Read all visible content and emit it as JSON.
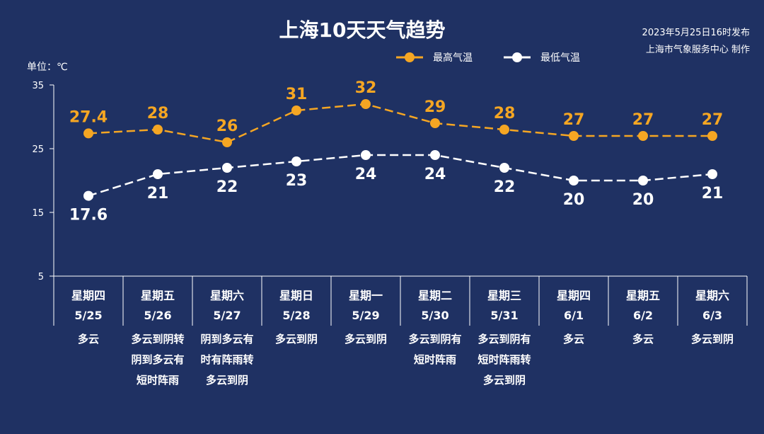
{
  "header": {
    "title": "上海10天天气趋势",
    "publish_time": "2023年5月25日16时发布",
    "publisher": "上海市气象服务中心 制作"
  },
  "colors": {
    "background": "#1f3163",
    "high": "#f5a623",
    "low": "#ffffff",
    "axis": "#ffffff"
  },
  "chart_data": {
    "type": "line",
    "unit_label": "单位：℃",
    "ylim": [
      5,
      35
    ],
    "yticks": [
      5,
      15,
      25,
      35
    ],
    "grid": false,
    "legend_position": "top-center",
    "days": [
      {
        "weekday": "星期四",
        "date": "5/25",
        "weather": [
          "多云"
        ]
      },
      {
        "weekday": "星期五",
        "date": "5/26",
        "weather": [
          "多云到阴转",
          "阴到多云有",
          "短时阵雨"
        ]
      },
      {
        "weekday": "星期六",
        "date": "5/27",
        "weather": [
          "阴到多云有",
          "时有阵雨转",
          "多云到阴"
        ]
      },
      {
        "weekday": "星期日",
        "date": "5/28",
        "weather": [
          "多云到阴"
        ]
      },
      {
        "weekday": "星期一",
        "date": "5/29",
        "weather": [
          "多云到阴"
        ]
      },
      {
        "weekday": "星期二",
        "date": "5/30",
        "weather": [
          "多云到阴有",
          "短时阵雨"
        ]
      },
      {
        "weekday": "星期三",
        "date": "5/31",
        "weather": [
          "多云到阴有",
          "短时阵雨转",
          "多云到阴"
        ]
      },
      {
        "weekday": "星期四",
        "date": "6/1",
        "weather": [
          "多云"
        ]
      },
      {
        "weekday": "星期五",
        "date": "6/2",
        "weather": [
          "多云"
        ]
      },
      {
        "weekday": "星期六",
        "date": "6/3",
        "weather": [
          "多云到阴"
        ]
      }
    ],
    "series": [
      {
        "name": "最高气温",
        "key": "high",
        "values": [
          27.4,
          28,
          26,
          31,
          32,
          29,
          28,
          27,
          27,
          27
        ],
        "labels": [
          "27.4",
          "28",
          "26",
          "31",
          "32",
          "29",
          "28",
          "27",
          "27",
          "27"
        ]
      },
      {
        "name": "最低气温",
        "key": "low",
        "values": [
          17.6,
          21,
          22,
          23,
          24,
          24,
          22,
          20,
          20,
          21
        ],
        "labels": [
          "17.6",
          "21",
          "22",
          "23",
          "24",
          "24",
          "22",
          "20",
          "20",
          "21"
        ]
      }
    ]
  }
}
